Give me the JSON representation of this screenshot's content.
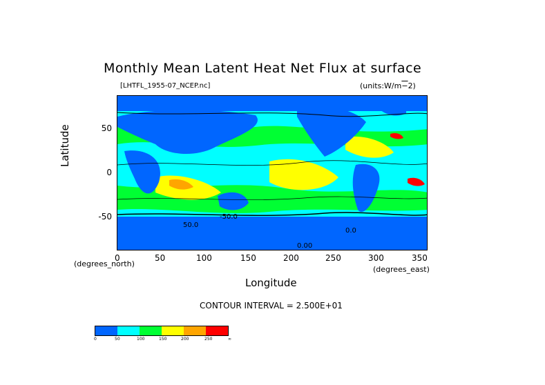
{
  "title": "Monthly Mean Latent Heat Net Flux at surface",
  "file_label": "[LHTFL_1955-07_NCEP.nc]",
  "units_label": "(units:W/m**2)",
  "axes": {
    "ylabel": "Latitude",
    "xlabel": "Longitude",
    "x_unit": "(degrees_north)",
    "x_unit_east": "(degrees_east)",
    "y_ticks": [
      "50",
      "0",
      "-50"
    ],
    "x_ticks": [
      "0",
      "50",
      "100",
      "150",
      "200",
      "250",
      "300",
      "350"
    ]
  },
  "contour_interval": "CONTOUR INTERVAL = 2.500E+01",
  "map_labels": [
    "-50.0",
    "50.0",
    "0.0",
    "0.00"
  ],
  "colorbar": {
    "colors": [
      "#0066ff",
      "#00ffff",
      "#00ff33",
      "#ffff00",
      "#ffa500",
      "#ff0000"
    ],
    "labels": [
      "0",
      "50",
      "100",
      "150",
      "200",
      "250",
      "∞"
    ]
  }
}
